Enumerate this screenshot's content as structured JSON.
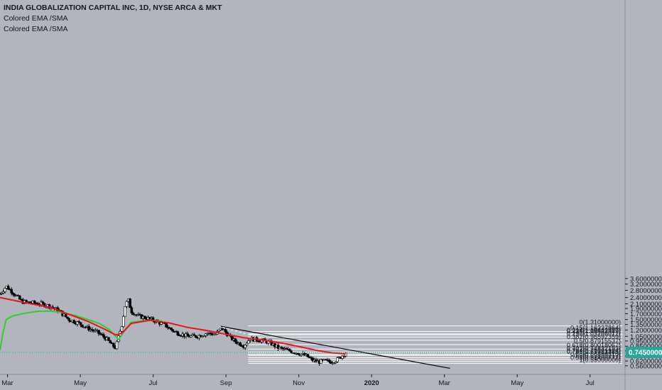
{
  "legend": {
    "title": "INDIA GLOBALIZATION CAPITAL INC, 1D, NYSE ARCA & MKT",
    "indicator_1": "Colored EMA /SMA",
    "indicator_2": "Colored EMA /SMA"
  },
  "colors": {
    "background": "#b2b5be",
    "up_candle": "#26a69a",
    "down_candle": "#000000",
    "ema_fast": "#e8141b",
    "ema_slow": "#33cc33",
    "fib_line": "#ffffff",
    "trendline": "#000000",
    "last_price": "#26a69a"
  },
  "chart_data": {
    "type": "candlestick",
    "yscale": "log",
    "ylim": [
      0.5,
      3.7
    ],
    "y_ticks": [
      "3.60000000",
      "3.20000000",
      "2.80000000",
      "2.40000000",
      "2.10000000",
      "1.90000000",
      "1.70000000",
      "1.50000000",
      "1.35000000",
      "1.20000000",
      "1.05000000",
      "0.95000000",
      "0.85000000",
      "0.77000000",
      "0.69000000",
      "0.62000000",
      "0.56000000"
    ],
    "x_ticks": [
      "Mar",
      "May",
      "Jul",
      "Sep",
      "Nov",
      "2020",
      "Mar",
      "May",
      "Jul"
    ],
    "last_price": "0.74500000",
    "fib_levels": [
      {
        "label": "0(1.31000000)",
        "value": 1.31
      },
      {
        "label": "0.15(1.16227864)",
        "value": 1.16227864
      },
      {
        "label": "0.214(1.10442437)",
        "value": 1.10442437
      },
      {
        "label": "0.236(1.08523369)",
        "value": 1.08523369
      },
      {
        "label": "0.298(1.03286012)",
        "value": 1.03286012
      },
      {
        "label": "0.382(0.96592359)",
        "value": 0.96592359
      },
      {
        "label": "0.5(0.87915537)",
        "value": 0.87915537
      },
      {
        "label": "0.618(0.80018067)",
        "value": 0.80018067
      },
      {
        "label": "0.702(0.74832193)",
        "value": 0.74832193
      },
      {
        "label": "0.764(0.71221324)",
        "value": 0.71221324
      },
      {
        "label": "0.786(0.69983385)",
        "value": 0.69983385
      },
      {
        "label": "0.85(0.66499310)",
        "value": 0.6649931
      },
      {
        "label": "0.9(0.63899217)",
        "value": 0.63899217
      },
      {
        "label": "0.95(0.61400772)",
        "value": 0.61400772
      },
      {
        "label": "1(0.59000000)",
        "value": 0.59
      }
    ],
    "price_path": [
      [
        0.0,
        2.6
      ],
      [
        0.01,
        3.05
      ],
      [
        0.02,
        2.7
      ],
      [
        0.035,
        2.2
      ],
      [
        0.05,
        2.15
      ],
      [
        0.065,
        2.1
      ],
      [
        0.08,
        2.0
      ],
      [
        0.095,
        1.8
      ],
      [
        0.11,
        1.5
      ],
      [
        0.125,
        1.4
      ],
      [
        0.14,
        1.25
      ],
      [
        0.155,
        1.15
      ],
      [
        0.17,
        1.0
      ],
      [
        0.18,
        0.86
      ],
      [
        0.185,
        0.82
      ],
      [
        0.195,
        1.35
      ],
      [
        0.2,
        2.0
      ],
      [
        0.205,
        2.3
      ],
      [
        0.21,
        1.8
      ],
      [
        0.22,
        1.62
      ],
      [
        0.235,
        1.55
      ],
      [
        0.25,
        1.45
      ],
      [
        0.265,
        1.32
      ],
      [
        0.28,
        1.15
      ],
      [
        0.3,
        1.05
      ],
      [
        0.315,
        1.05
      ],
      [
        0.33,
        1.12
      ],
      [
        0.345,
        1.1
      ],
      [
        0.355,
        1.25
      ],
      [
        0.365,
        1.08
      ],
      [
        0.375,
        0.95
      ],
      [
        0.39,
        0.86
      ],
      [
        0.4,
        1.0
      ],
      [
        0.415,
        0.97
      ],
      [
        0.43,
        0.93
      ],
      [
        0.445,
        0.82
      ],
      [
        0.46,
        0.78
      ],
      [
        0.475,
        0.74
      ],
      [
        0.49,
        0.69
      ],
      [
        0.5,
        0.63
      ],
      [
        0.51,
        0.61
      ],
      [
        0.52,
        0.62
      ],
      [
        0.53,
        0.61
      ],
      [
        0.54,
        0.64
      ],
      [
        0.548,
        0.7
      ],
      [
        0.553,
        0.745
      ]
    ],
    "ema_fast": [
      [
        0.0,
        2.4
      ],
      [
        0.04,
        2.15
      ],
      [
        0.08,
        1.95
      ],
      [
        0.11,
        1.68
      ],
      [
        0.14,
        1.45
      ],
      [
        0.17,
        1.2
      ],
      [
        0.185,
        1.08
      ],
      [
        0.195,
        1.12
      ],
      [
        0.21,
        1.38
      ],
      [
        0.24,
        1.48
      ],
      [
        0.27,
        1.4
      ],
      [
        0.3,
        1.27
      ],
      [
        0.33,
        1.19
      ],
      [
        0.36,
        1.1
      ],
      [
        0.39,
        1.02
      ],
      [
        0.42,
        0.97
      ],
      [
        0.45,
        0.91
      ],
      [
        0.48,
        0.84
      ],
      [
        0.51,
        0.77
      ],
      [
        0.53,
        0.74
      ],
      [
        0.553,
        0.72
      ]
    ],
    "ema_slow": [
      [
        0.0,
        0.78
      ],
      [
        0.005,
        1.15
      ],
      [
        0.01,
        1.5
      ],
      [
        0.02,
        1.62
      ],
      [
        0.04,
        1.72
      ],
      [
        0.06,
        1.79
      ],
      [
        0.08,
        1.8
      ],
      [
        0.1,
        1.74
      ],
      [
        0.12,
        1.64
      ],
      [
        0.14,
        1.51
      ],
      [
        0.16,
        1.37
      ],
      [
        0.175,
        1.21
      ],
      [
        0.185,
        1.05
      ],
      [
        0.19,
        0.98
      ],
      [
        0.2,
        1.2
      ],
      [
        0.21,
        1.42
      ],
      [
        0.24,
        1.48
      ],
      [
        0.26,
        1.45
      ]
    ],
    "trendline": [
      [
        0.35,
        1.31
      ],
      [
        0.72,
        0.53
      ]
    ],
    "dashed_line": [
      [
        0.35,
        1.31
      ],
      [
        0.395,
        1.1
      ]
    ]
  }
}
